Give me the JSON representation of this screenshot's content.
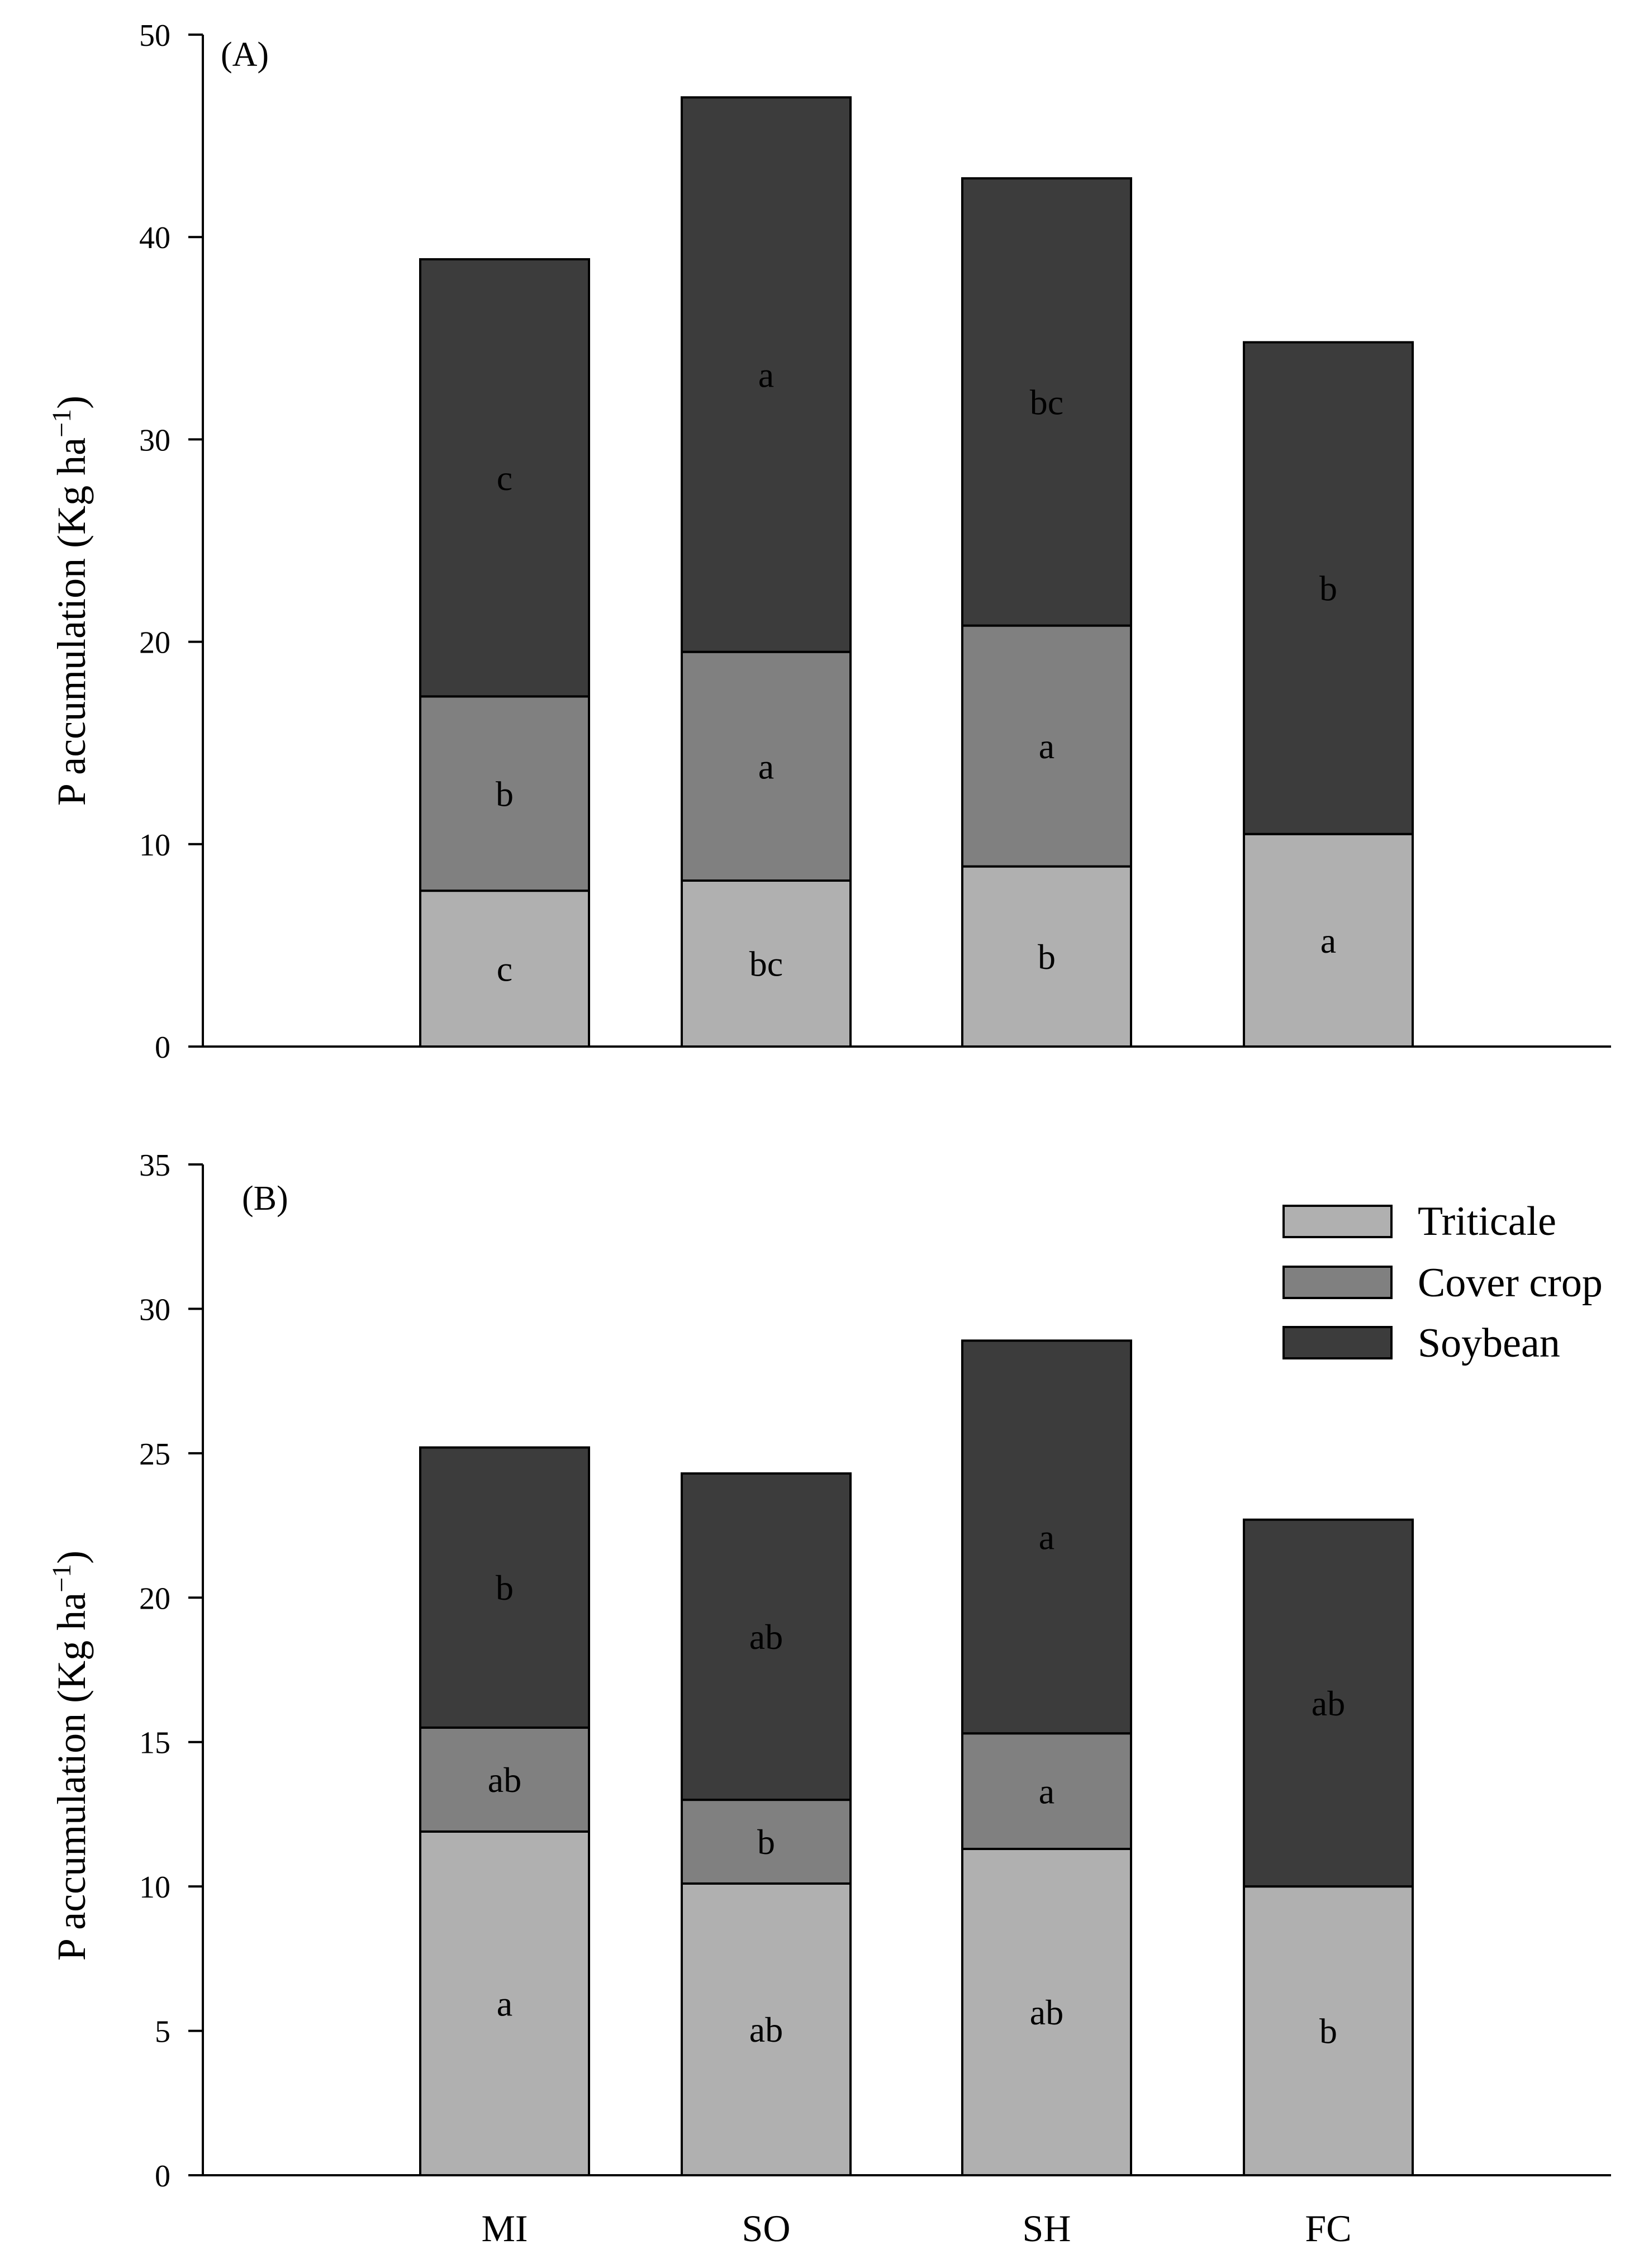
{
  "colors": {
    "triticale": "#b0b0b0",
    "cover_crop": "#808080",
    "soybean": "#3c3c3c",
    "outline": "#000000",
    "background": "#ffffff"
  },
  "legend": {
    "items": [
      {
        "key": "triticale",
        "label": "Triticale"
      },
      {
        "key": "cover_crop",
        "label": "Cover crop"
      },
      {
        "key": "soybean",
        "label": "Soybean"
      }
    ]
  },
  "chart_data": [
    {
      "type": "bar",
      "stacked": true,
      "panel_label": "(A)",
      "ylabel": "P accumulation (Kg ha",
      "ylabel_superscript": "−1",
      "ylabel_suffix": ")",
      "ylim": [
        0,
        50
      ],
      "yticks": [
        0,
        10,
        20,
        30,
        40,
        50
      ],
      "categories": [
        "MI",
        "SO",
        "SH",
        "FC"
      ],
      "show_category_labels": false,
      "series": [
        {
          "key": "triticale",
          "name": "Triticale",
          "values": [
            7.7,
            8.2,
            8.9,
            10.5
          ],
          "labels": [
            "c",
            "bc",
            "b",
            "a"
          ]
        },
        {
          "key": "cover_crop",
          "name": "Cover crop",
          "values": [
            9.6,
            11.3,
            11.9,
            0
          ],
          "labels": [
            "b",
            "a",
            "a",
            ""
          ]
        },
        {
          "key": "soybean",
          "name": "Soybean",
          "values": [
            21.6,
            27.4,
            22.1,
            24.3
          ],
          "labels": [
            "c",
            "a",
            "bc",
            "b"
          ]
        }
      ],
      "totals": [
        38.9,
        46.9,
        42.9,
        34.8
      ]
    },
    {
      "type": "bar",
      "stacked": true,
      "panel_label": "(B)",
      "ylabel": "P accumulation (Kg ha",
      "ylabel_superscript": "−1",
      "ylabel_suffix": ")",
      "ylim": [
        0,
        35
      ],
      "yticks": [
        0,
        5,
        10,
        15,
        20,
        25,
        30,
        35
      ],
      "categories": [
        "MI",
        "SO",
        "SH",
        "FC"
      ],
      "show_category_labels": true,
      "legend_position": "top-right",
      "series": [
        {
          "key": "triticale",
          "name": "Triticale",
          "values": [
            11.9,
            10.1,
            11.3,
            10.0
          ],
          "labels": [
            "a",
            "ab",
            "ab",
            "b"
          ]
        },
        {
          "key": "cover_crop",
          "name": "Cover crop",
          "values": [
            3.6,
            2.9,
            4.0,
            0
          ],
          "labels": [
            "ab",
            "b",
            "a",
            ""
          ]
        },
        {
          "key": "soybean",
          "name": "Soybean",
          "values": [
            9.7,
            11.3,
            13.6,
            12.7
          ],
          "labels": [
            "b",
            "ab",
            "a",
            "ab"
          ]
        }
      ],
      "totals": [
        25.2,
        24.3,
        28.9,
        22.7
      ]
    }
  ]
}
